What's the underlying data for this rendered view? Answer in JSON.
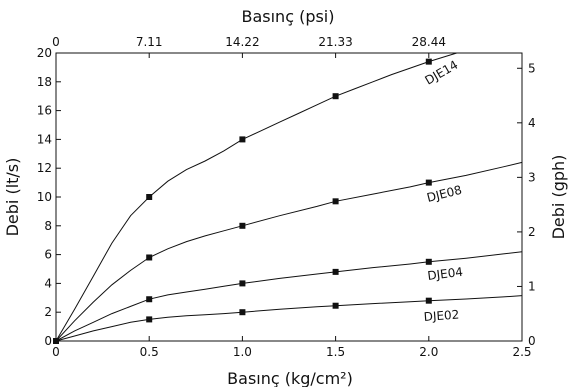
{
  "chart_data": {
    "type": "line",
    "xlabel": "Basınç (kg/cm²)",
    "x2label": "Basınç (psi)",
    "ylabel": "Debi (lt/s)",
    "y2label": "Debi (gph)",
    "xlim": [
      0,
      2.5
    ],
    "ylim": [
      0,
      20
    ],
    "y2lim": [
      0,
      5.28
    ],
    "x_ticks": [
      0,
      0.5,
      1.0,
      1.5,
      2.0,
      2.5
    ],
    "x_tick_labels": [
      "0",
      "0.5",
      "1.0",
      "1.5",
      "2.0",
      "2.5"
    ],
    "x2_ticks": [
      0,
      7.11,
      14.22,
      21.33,
      28.44
    ],
    "x2_tick_labels": [
      "0",
      "7.11",
      "14.22",
      "21.33",
      "28.44"
    ],
    "y_ticks": [
      0,
      2,
      4,
      6,
      8,
      10,
      12,
      14,
      16,
      18,
      20
    ],
    "y_tick_labels": [
      "0",
      "2",
      "4",
      "6",
      "8",
      "10",
      "12",
      "14",
      "16",
      "18",
      "20"
    ],
    "y2_ticks": [
      0,
      1,
      2,
      3,
      4,
      5
    ],
    "y2_tick_labels": [
      "0",
      "1",
      "2",
      "3",
      "4",
      "5"
    ],
    "grid": false,
    "series": [
      {
        "name": "DJE14",
        "points": [
          [
            0,
            0
          ],
          [
            0.5,
            10
          ],
          [
            1.0,
            14
          ],
          [
            1.5,
            17
          ],
          [
            2.0,
            19.4
          ]
        ],
        "curve": [
          [
            0,
            0
          ],
          [
            0.1,
            2.2
          ],
          [
            0.2,
            4.5
          ],
          [
            0.3,
            6.8
          ],
          [
            0.4,
            8.7
          ],
          [
            0.5,
            10
          ],
          [
            0.6,
            11.1
          ],
          [
            0.7,
            11.9
          ],
          [
            0.8,
            12.5
          ],
          [
            0.9,
            13.2
          ],
          [
            1.0,
            14
          ],
          [
            1.1,
            14.6
          ],
          [
            1.2,
            15.2
          ],
          [
            1.3,
            15.8
          ],
          [
            1.4,
            16.4
          ],
          [
            1.5,
            17
          ],
          [
            1.6,
            17.5
          ],
          [
            1.7,
            18
          ],
          [
            1.8,
            18.5
          ],
          [
            1.9,
            18.95
          ],
          [
            2.0,
            19.4
          ],
          [
            2.1,
            19.8
          ],
          [
            2.15,
            20
          ]
        ]
      },
      {
        "name": "DJE08",
        "points": [
          [
            0,
            0
          ],
          [
            0.5,
            5.8
          ],
          [
            1.0,
            8
          ],
          [
            1.5,
            9.7
          ],
          [
            2.0,
            11
          ]
        ],
        "curve": [
          [
            0,
            0
          ],
          [
            0.1,
            1.4
          ],
          [
            0.2,
            2.7
          ],
          [
            0.3,
            3.9
          ],
          [
            0.4,
            4.9
          ],
          [
            0.5,
            5.8
          ],
          [
            0.6,
            6.4
          ],
          [
            0.7,
            6.9
          ],
          [
            0.8,
            7.3
          ],
          [
            0.9,
            7.65
          ],
          [
            1.0,
            8
          ],
          [
            1.2,
            8.7
          ],
          [
            1.4,
            9.35
          ],
          [
            1.5,
            9.7
          ],
          [
            1.7,
            10.2
          ],
          [
            1.9,
            10.7
          ],
          [
            2.0,
            11
          ],
          [
            2.2,
            11.5
          ],
          [
            2.4,
            12.1
          ],
          [
            2.5,
            12.4
          ]
        ]
      },
      {
        "name": "DJE04",
        "points": [
          [
            0,
            0
          ],
          [
            0.5,
            2.9
          ],
          [
            1.0,
            4
          ],
          [
            1.5,
            4.8
          ],
          [
            2.0,
            5.5
          ]
        ],
        "curve": [
          [
            0,
            0
          ],
          [
            0.1,
            0.7
          ],
          [
            0.2,
            1.3
          ],
          [
            0.3,
            1.9
          ],
          [
            0.4,
            2.4
          ],
          [
            0.5,
            2.9
          ],
          [
            0.6,
            3.2
          ],
          [
            0.7,
            3.4
          ],
          [
            0.8,
            3.6
          ],
          [
            0.9,
            3.8
          ],
          [
            1.0,
            4
          ],
          [
            1.2,
            4.35
          ],
          [
            1.4,
            4.65
          ],
          [
            1.5,
            4.8
          ],
          [
            1.7,
            5.1
          ],
          [
            1.9,
            5.35
          ],
          [
            2.0,
            5.5
          ],
          [
            2.2,
            5.75
          ],
          [
            2.4,
            6.05
          ],
          [
            2.5,
            6.2
          ]
        ]
      },
      {
        "name": "DJE02",
        "points": [
          [
            0,
            0
          ],
          [
            0.5,
            1.5
          ],
          [
            1.0,
            2
          ],
          [
            1.5,
            2.45
          ],
          [
            2.0,
            2.8
          ]
        ],
        "curve": [
          [
            0,
            0
          ],
          [
            0.1,
            0.35
          ],
          [
            0.2,
            0.7
          ],
          [
            0.3,
            1.0
          ],
          [
            0.4,
            1.3
          ],
          [
            0.5,
            1.5
          ],
          [
            0.6,
            1.65
          ],
          [
            0.7,
            1.75
          ],
          [
            0.8,
            1.82
          ],
          [
            0.9,
            1.9
          ],
          [
            1.0,
            2
          ],
          [
            1.2,
            2.2
          ],
          [
            1.4,
            2.38
          ],
          [
            1.5,
            2.45
          ],
          [
            1.7,
            2.6
          ],
          [
            1.9,
            2.72
          ],
          [
            2.0,
            2.8
          ],
          [
            2.2,
            2.92
          ],
          [
            2.4,
            3.06
          ],
          [
            2.5,
            3.15
          ]
        ]
      }
    ]
  }
}
